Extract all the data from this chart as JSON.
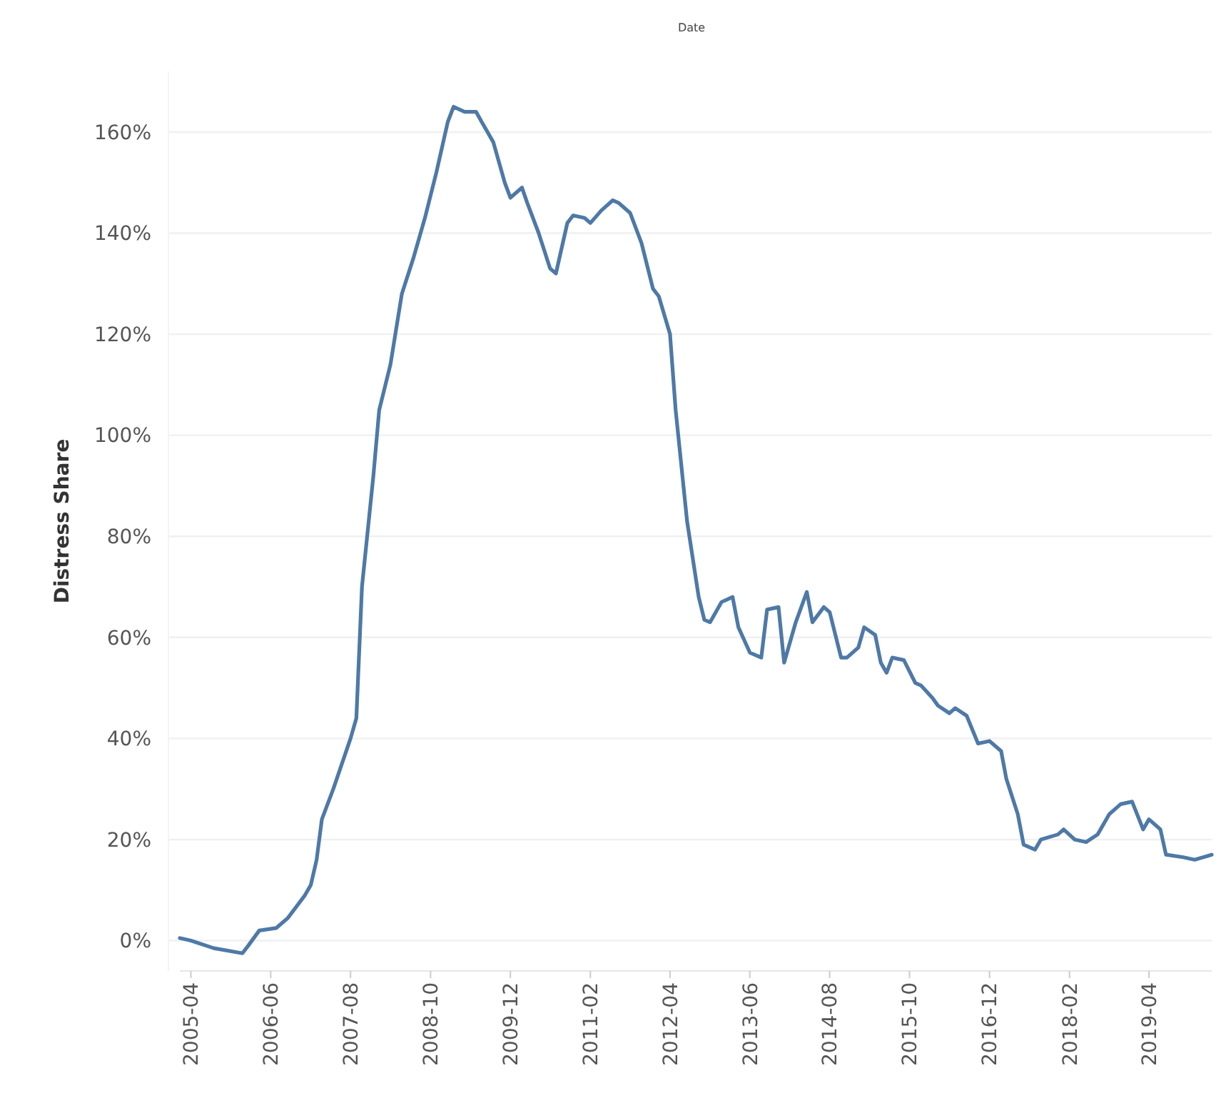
{
  "chart_data": {
    "type": "line",
    "xlabel": "Date",
    "ylabel": "Distress Share",
    "x": [
      "2005-02",
      "2005-04",
      "2005-08",
      "2006-01",
      "2006-02",
      "2006-04",
      "2006-07",
      "2006-09",
      "2006-12",
      "2007-01",
      "2007-02",
      "2007-03",
      "2007-05",
      "2007-08",
      "2007-09",
      "2007-10",
      "2007-12",
      "2008-01",
      "2008-03",
      "2008-05",
      "2008-07",
      "2008-09",
      "2008-11",
      "2009-01",
      "2009-02",
      "2009-04",
      "2009-06",
      "2009-07",
      "2009-09",
      "2009-11",
      "2009-12",
      "2010-02",
      "2010-03",
      "2010-05",
      "2010-07",
      "2010-08",
      "2010-10",
      "2010-11",
      "2011-01",
      "2011-02",
      "2011-04",
      "2011-06",
      "2011-07",
      "2011-09",
      "2011-11",
      "2012-01",
      "2012-02",
      "2012-04",
      "2012-05",
      "2012-07",
      "2012-09",
      "2012-10",
      "2012-11",
      "2013-01",
      "2013-03",
      "2013-04",
      "2013-06",
      "2013-08",
      "2013-09",
      "2013-11",
      "2013-12",
      "2014-02",
      "2014-04",
      "2014-05",
      "2014-07",
      "2014-08",
      "2014-10",
      "2014-11",
      "2015-01",
      "2015-02",
      "2015-04",
      "2015-05",
      "2015-06",
      "2015-07",
      "2015-09",
      "2015-11",
      "2015-12",
      "2016-02",
      "2016-03",
      "2016-05",
      "2016-06",
      "2016-08",
      "2016-10",
      "2016-12",
      "2017-02",
      "2017-03",
      "2017-05",
      "2017-06",
      "2017-08",
      "2017-09",
      "2017-12",
      "2018-01",
      "2018-03",
      "2018-05",
      "2018-07",
      "2018-09",
      "2018-11",
      "2019-01",
      "2019-03",
      "2019-04",
      "2019-06",
      "2019-07",
      "2019-10",
      "2019-12",
      "2020-03"
    ],
    "series": [
      {
        "color": "#4e79a7",
        "values": [
          0.5,
          0,
          -1.5,
          -2.5,
          -1,
          2,
          2.5,
          4.5,
          9,
          11,
          16,
          24,
          30,
          40,
          44,
          70,
          92,
          105,
          114,
          128,
          135,
          143,
          152,
          162,
          165,
          164,
          164,
          162,
          158,
          150,
          147,
          149,
          146,
          140,
          133,
          132,
          142,
          143.5,
          143,
          142,
          144.5,
          146.5,
          146,
          144,
          138,
          129,
          127.5,
          120,
          105,
          83,
          68,
          63.5,
          63,
          67,
          68,
          62,
          57,
          56,
          65.5,
          66,
          55,
          63,
          69,
          63,
          66,
          65,
          56,
          56,
          58,
          62,
          60.5,
          55,
          53,
          56,
          55.5,
          51,
          50.5,
          48,
          46.5,
          45,
          46,
          44.5,
          39,
          39.5,
          37.5,
          32,
          25,
          19,
          18,
          20,
          21,
          22,
          20,
          19.5,
          21,
          25,
          27,
          27.5,
          22,
          24,
          22,
          17,
          16.5,
          16,
          17
        ]
      }
    ],
    "xlim": [
      "2005-02",
      "2020-03"
    ],
    "xticks": [
      {
        "value": "2005-04",
        "label": "2005-04"
      },
      {
        "value": "2006-06",
        "label": "2006-06"
      },
      {
        "value": "2007-08",
        "label": "2007-08"
      },
      {
        "value": "2008-10",
        "label": "2008-10"
      },
      {
        "value": "2009-12",
        "label": "2009-12"
      },
      {
        "value": "2011-02",
        "label": "2011-02"
      },
      {
        "value": "2012-04",
        "label": "2012-04"
      },
      {
        "value": "2013-06",
        "label": "2013-06"
      },
      {
        "value": "2014-08",
        "label": "2014-08"
      },
      {
        "value": "2015-10",
        "label": "2015-10"
      },
      {
        "value": "2016-12",
        "label": "2016-12"
      },
      {
        "value": "2018-02",
        "label": "2018-02"
      },
      {
        "value": "2019-04",
        "label": "2019-04"
      }
    ],
    "ylim": [
      -6,
      172
    ],
    "yticks": [
      {
        "value": 0,
        "label": "0%"
      },
      {
        "value": 20,
        "label": "20%"
      },
      {
        "value": 40,
        "label": "40%"
      },
      {
        "value": 60,
        "label": "60%"
      },
      {
        "value": 80,
        "label": "80%"
      },
      {
        "value": 100,
        "label": "100%"
      },
      {
        "value": 120,
        "label": "120%"
      },
      {
        "value": 140,
        "label": "140%"
      },
      {
        "value": 160,
        "label": "160%"
      }
    ],
    "grid": "y",
    "line_style": "solid"
  }
}
